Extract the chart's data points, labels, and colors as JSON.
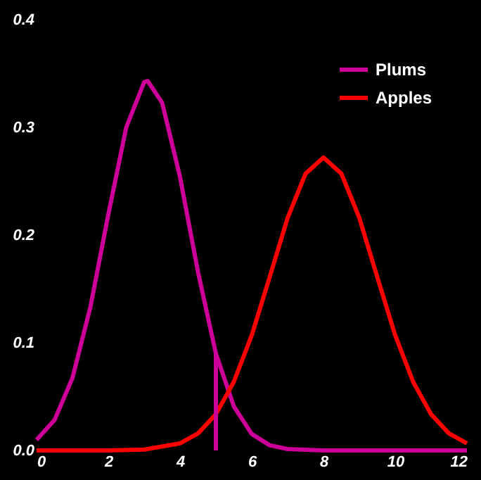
{
  "chart_data": {
    "type": "line",
    "x": [
      0,
      0.5,
      1,
      1.5,
      2,
      2.5,
      3,
      3.1,
      3.5,
      4,
      4.5,
      5,
      5.5,
      6,
      6.5,
      7,
      8,
      12
    ],
    "series": [
      {
        "name": "Plums",
        "color": "#cc0099",
        "values": [
          0.0098,
          0.0282,
          0.0672,
          0.133,
          0.219,
          0.3,
          0.342,
          0.343,
          0.323,
          0.254,
          0.166,
          0.09,
          0.041,
          0.0153,
          0.0048,
          0.0013,
          0,
          0
        ]
      },
      {
        "name": "Apples",
        "color": "#ff0000",
        "x": [
          0,
          2,
          3,
          4,
          4.5,
          5,
          5.5,
          6,
          6.5,
          7,
          7.5,
          8,
          8.5,
          9,
          9.5,
          10,
          10.5,
          11,
          11.5,
          12
        ],
        "values": [
          0,
          0,
          0.0008,
          0.0066,
          0.0158,
          0.0336,
          0.0637,
          0.107,
          0.161,
          0.216,
          0.257,
          0.272,
          0.257,
          0.216,
          0.161,
          0.107,
          0.0637,
          0.0336,
          0.0158,
          0.0066
        ]
      },
      {
        "color": "#cc0099",
        "x": [
          5,
          5
        ],
        "values": [
          0,
          0.09
        ]
      }
    ],
    "xlim": [
      0,
      12
    ],
    "xticks": [
      0,
      2,
      4,
      6,
      8,
      10,
      12
    ],
    "ylim": [
      0,
      0.4
    ],
    "yticks": [
      {
        "value": 0,
        "label": "0.0"
      },
      0.1,
      0.2,
      0.3,
      0.4
    ],
    "grid": false,
    "legend": "top right",
    "line_style": "solid",
    "marker": "none"
  }
}
